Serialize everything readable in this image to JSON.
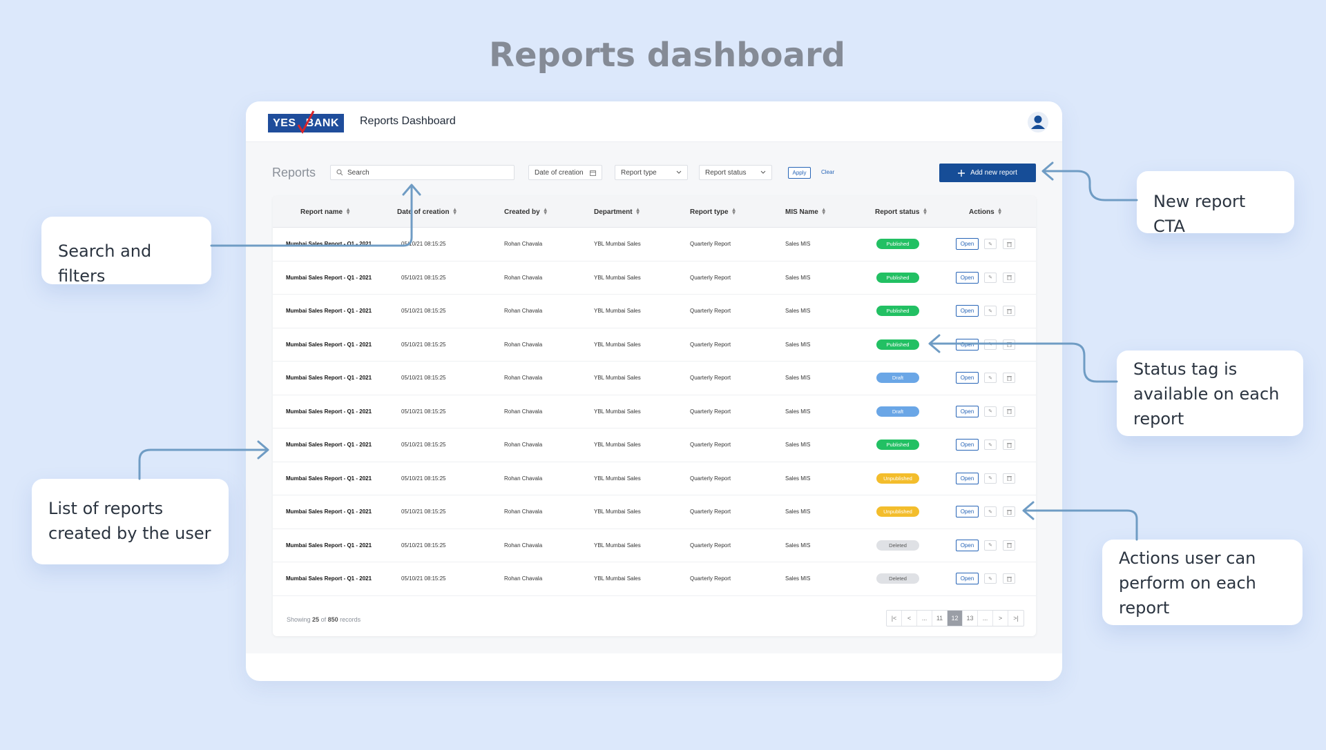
{
  "page_title": "Reports dashboard",
  "app": {
    "logo_left": "YES",
    "logo_right": "BANK",
    "title": "Reports Dashboard"
  },
  "toolbar": {
    "section_label": "Reports",
    "search_placeholder": "Search",
    "date_filter": "Date of creation",
    "report_type_filter": "Report type",
    "report_status_filter": "Report status",
    "apply_label": "Apply",
    "clear_label": "Clear",
    "add_label": "Add new report"
  },
  "table": {
    "headers": [
      "Report name",
      "Date of creation",
      "Created by",
      "Department",
      "Report type",
      "MIS Name",
      "Report status",
      "Actions"
    ],
    "rows": [
      {
        "name": "Mumbai Sales Report - Q1 - 2021",
        "date": "05/10/21 08:15:25",
        "created_by": "Rohan Chavala",
        "department": "YBL Mumbai Sales",
        "type": "Quarterly Report",
        "mis": "Sales MIS",
        "status": "Published"
      },
      {
        "name": "Mumbai Sales Report - Q1 - 2021",
        "date": "05/10/21 08:15:25",
        "created_by": "Rohan Chavala",
        "department": "YBL Mumbai Sales",
        "type": "Quarterly Report",
        "mis": "Sales MIS",
        "status": "Published"
      },
      {
        "name": "Mumbai Sales Report - Q1 - 2021",
        "date": "05/10/21 08:15:25",
        "created_by": "Rohan Chavala",
        "department": "YBL Mumbai Sales",
        "type": "Quarterly Report",
        "mis": "Sales MIS",
        "status": "Published"
      },
      {
        "name": "Mumbai Sales Report - Q1 - 2021",
        "date": "05/10/21 08:15:25",
        "created_by": "Rohan Chavala",
        "department": "YBL Mumbai Sales",
        "type": "Quarterly Report",
        "mis": "Sales MIS",
        "status": "Published"
      },
      {
        "name": "Mumbai Sales Report - Q1 - 2021",
        "date": "05/10/21 08:15:25",
        "created_by": "Rohan Chavala",
        "department": "YBL Mumbai Sales",
        "type": "Quarterly Report",
        "mis": "Sales MIS",
        "status": "Draft"
      },
      {
        "name": "Mumbai Sales Report - Q1 - 2021",
        "date": "05/10/21 08:15:25",
        "created_by": "Rohan Chavala",
        "department": "YBL Mumbai Sales",
        "type": "Quarterly Report",
        "mis": "Sales MIS",
        "status": "Draft"
      },
      {
        "name": "Mumbai Sales Report - Q1 - 2021",
        "date": "05/10/21 08:15:25",
        "created_by": "Rohan Chavala",
        "department": "YBL Mumbai Sales",
        "type": "Quarterly Report",
        "mis": "Sales MIS",
        "status": "Published"
      },
      {
        "name": "Mumbai Sales Report - Q1 - 2021",
        "date": "05/10/21 08:15:25",
        "created_by": "Rohan Chavala",
        "department": "YBL Mumbai Sales",
        "type": "Quarterly Report",
        "mis": "Sales MIS",
        "status": "Unpublished"
      },
      {
        "name": "Mumbai Sales Report - Q1 - 2021",
        "date": "05/10/21 08:15:25",
        "created_by": "Rohan Chavala",
        "department": "YBL Mumbai Sales",
        "type": "Quarterly Report",
        "mis": "Sales MIS",
        "status": "Unpublished"
      },
      {
        "name": "Mumbai Sales Report - Q1 - 2021",
        "date": "05/10/21 08:15:25",
        "created_by": "Rohan Chavala",
        "department": "YBL Mumbai Sales",
        "type": "Quarterly Report",
        "mis": "Sales MIS",
        "status": "Deleted"
      },
      {
        "name": "Mumbai Sales Report - Q1 - 2021",
        "date": "05/10/21 08:15:25",
        "created_by": "Rohan Chavala",
        "department": "YBL Mumbai Sales",
        "type": "Quarterly Report",
        "mis": "Sales MIS",
        "status": "Deleted"
      }
    ],
    "open_label": "Open",
    "status_colors": {
      "Published": {
        "bg": "#22c063",
        "fg": "#ffffff"
      },
      "Draft": {
        "bg": "#6aa6e6",
        "fg": "#ffffff"
      },
      "Unpublished": {
        "bg": "#f3bd2c",
        "fg": "#ffffff"
      },
      "Deleted": {
        "bg": "#dfe1e5",
        "fg": "#555555"
      }
    }
  },
  "footer": {
    "showing_prefix": "Showing",
    "showing_count": "25",
    "showing_of": "of",
    "showing_total": "850",
    "showing_suffix": "records",
    "pages": [
      "|<",
      "<",
      "...",
      "11",
      "12",
      "13",
      "...",
      ">",
      ">|"
    ],
    "active_page": "12"
  },
  "callouts": {
    "search": "Search and filters",
    "new_report": "New report CTA",
    "status": "Status tag is available on each report",
    "list": "List of reports created by the user",
    "actions": "Actions user can perform on each report"
  },
  "colors": {
    "background": "#dce8fb",
    "brand": "#164d97",
    "arrow": "#6f9cc4"
  }
}
